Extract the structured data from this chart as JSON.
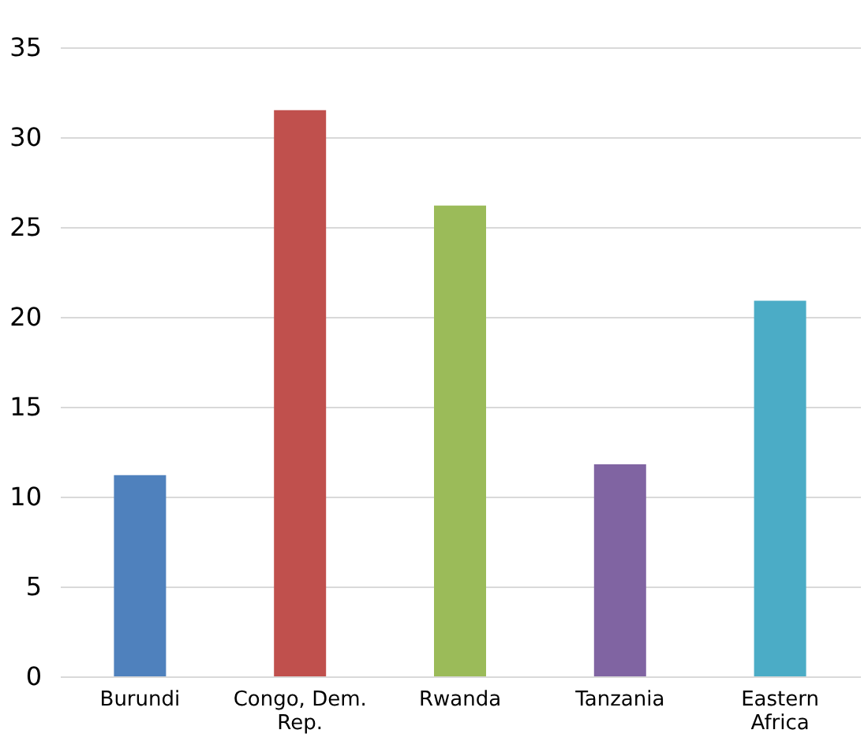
{
  "chart_data": {
    "type": "bar",
    "categories": [
      "Burundi",
      "Congo, Dem. Rep.",
      "Rwanda",
      "Tanzania",
      "Eastern Africa"
    ],
    "values": [
      11.2,
      31.5,
      26.2,
      11.8,
      20.9
    ],
    "colors": [
      "#4f81bd",
      "#c0504d",
      "#9bbb59",
      "#8064a2",
      "#4bacc6"
    ],
    "ylim": [
      0,
      35
    ],
    "yticks": [
      0,
      5,
      10,
      15,
      20,
      25,
      30,
      35
    ],
    "grid": "y"
  }
}
